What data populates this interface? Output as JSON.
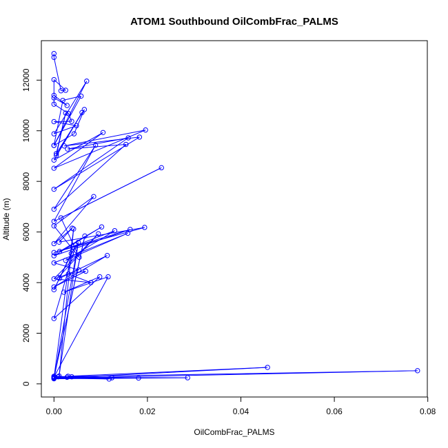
{
  "chart_data": {
    "type": "line",
    "title": "ATOM1 Southbound OilCombFrac_PALMS",
    "xlabel": "OilCombFrac_PALMS",
    "ylabel": "Altitude (m)",
    "xlim": [
      -0.0027,
      0.0799
    ],
    "ylim": [
      -520,
      13560
    ],
    "xticks": [
      {
        "value": 0.0,
        "label": "0.00"
      },
      {
        "value": 0.02,
        "label": "0.02"
      },
      {
        "value": 0.04,
        "label": "0.04"
      },
      {
        "value": 0.06,
        "label": "0.06"
      },
      {
        "value": 0.08,
        "label": "0.08"
      }
    ],
    "yticks": [
      {
        "value": 0,
        "label": "0"
      },
      {
        "value": 2000,
        "label": "2000"
      },
      {
        "value": 4000,
        "label": "4000"
      },
      {
        "value": 6000,
        "label": "6000"
      },
      {
        "value": 8000,
        "label": "8000"
      },
      {
        "value": 10000,
        "label": "10000"
      },
      {
        "value": 12000,
        "label": "12000"
      }
    ],
    "grid": false,
    "legend": "none",
    "color": "#0000ff",
    "series": [
      {
        "x": [
          0.0,
          0.0,
          0.0015,
          0.0025,
          0.0,
          0.0,
          0.0028,
          0.0,
          0.0,
          0.0031,
          0.0038,
          0.0,
          0.0048,
          0.0,
          0.007,
          0.0,
          0.0058,
          0.0019,
          0.0,
          0.0043,
          0.0065,
          0.0005,
          0.0025,
          0.0005,
          0.006,
          0.0,
          0.0105,
          0.0,
          0.0196,
          0.0022,
          0.0183,
          0.0,
          0.0159,
          0.0029,
          0.0154,
          0.0,
          0.0089,
          0.0,
          0.023,
          0.0015,
          0.0054,
          0.0,
          0.0085,
          0.0,
          0.0039,
          0.0011,
          0.0194,
          0.0,
          0.0163,
          0.0,
          0.0102,
          0.0012,
          0.013,
          0.0025,
          0.0158,
          0.0,
          0.0053,
          0.0009,
          0.0095,
          0.0,
          0.0079,
          0.0031,
          0.0068,
          0.0,
          0.0114,
          0.0012,
          0.0037,
          0.0,
          0.0047,
          0.0,
          0.0098,
          0.0021,
          0.0116,
          0.0,
          0.0066,
          0.0,
          0.0042,
          0.0011,
          0.0052,
          0.0,
          0.0286,
          0.0,
          0.0181,
          0.003,
          0.0457,
          0.0,
          0.0778,
          0.0009,
          0.0124,
          0.0,
          0.0118,
          0.0028,
          0.0,
          0.0038,
          0.0
        ],
        "y": [
          13050,
          12900,
          11580,
          11600,
          12020,
          11400,
          11000,
          11300,
          11050,
          10680,
          10370,
          10360,
          10200,
          9880,
          11960,
          9420,
          11370,
          11200,
          9420,
          9880,
          10840,
          9100,
          10700,
          9030,
          10720,
          8840,
          9930,
          8520,
          10030,
          9400,
          9750,
          7690,
          9720,
          9280,
          9460,
          6900,
          9430,
          6420,
          8540,
          6560,
          5000,
          6240,
          7400,
          5540,
          6150,
          5600,
          6180,
          5190,
          6100,
          5060,
          6200,
          5230,
          6050,
          4880,
          5950,
          4780,
          4500,
          4200,
          5930,
          4150,
          4000,
          4340,
          4450,
          3830,
          5070,
          4170,
          5150,
          3720,
          5490,
          2580,
          4230,
          3620,
          4230,
          270,
          5840,
          240,
          6120,
          310,
          5590,
          200,
          240,
          250,
          230,
          300,
          650,
          220,
          520,
          280,
          240,
          230,
          190,
          260,
          300,
          280,
          270
        ]
      }
    ]
  }
}
